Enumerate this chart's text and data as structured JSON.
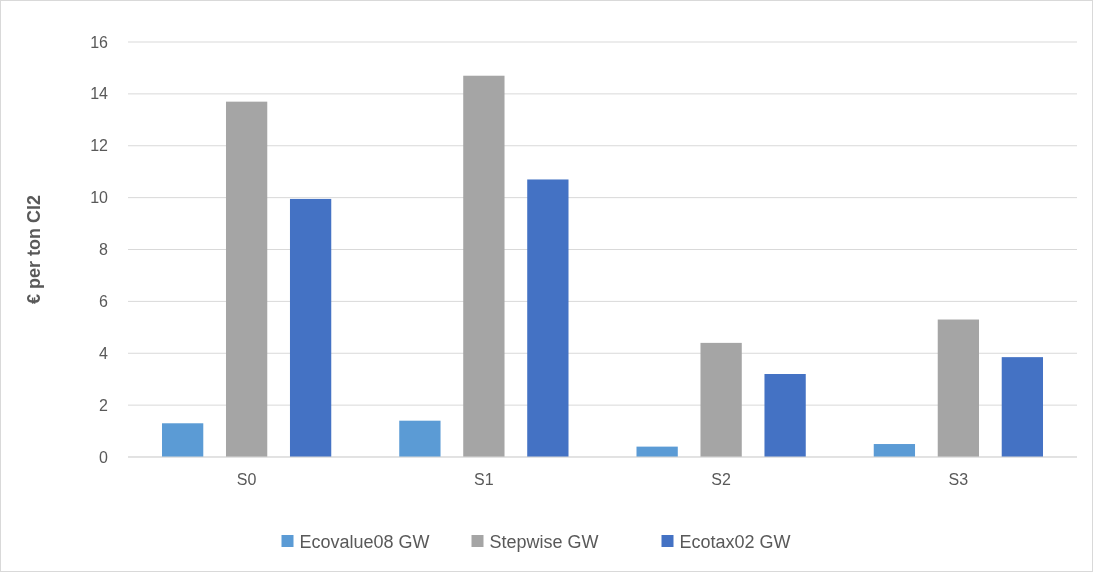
{
  "chart_data": {
    "type": "bar",
    "ylabel": "€ per ton Cl2",
    "categories": [
      "S0",
      "S1",
      "S2",
      "S3"
    ],
    "series": [
      {
        "name": "Ecovalue08 GW",
        "color": "#5b9bd5",
        "values": [
          1.3,
          1.4,
          0.4,
          0.5
        ]
      },
      {
        "name": "Stepwise GW",
        "color": "#a5a5a5",
        "values": [
          13.7,
          14.7,
          4.4,
          5.3
        ]
      },
      {
        "name": "Ecotax02 GW",
        "color": "#4472c4",
        "values": [
          9.95,
          10.7,
          3.2,
          3.85
        ]
      }
    ],
    "ylim": [
      0,
      16
    ],
    "yticks": [
      0,
      2,
      4,
      6,
      8,
      10,
      12,
      14,
      16
    ],
    "grid": "y",
    "legend": "bottom"
  }
}
